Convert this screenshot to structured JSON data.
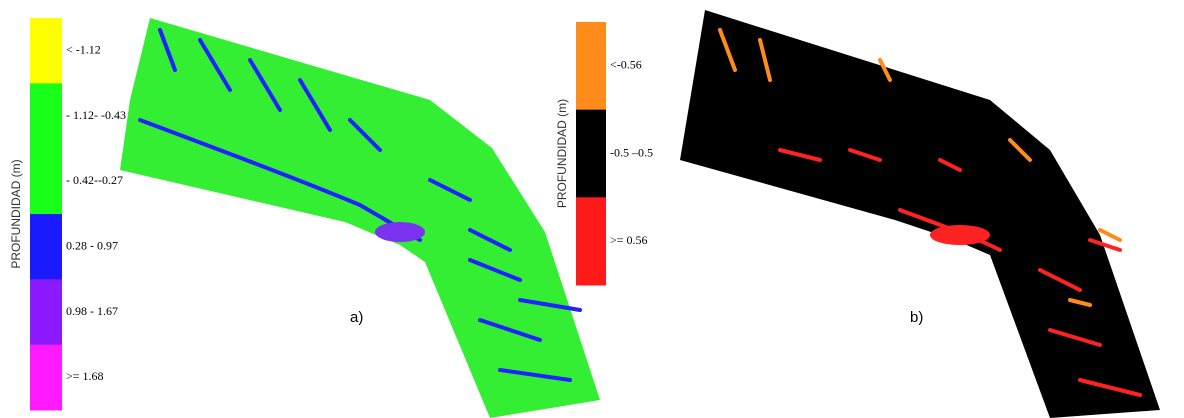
{
  "panel_a": {
    "legend_title": "PROFUNDIDAD (m)",
    "label": "a)",
    "legend": [
      {
        "label": "< -1.12",
        "color": "#ffff00"
      },
      {
        "label": "- 1.12- -0.43",
        "color": "#1aff1a"
      },
      {
        "label": "- 0.42--0.27",
        "color": "#1aff1a"
      },
      {
        "label": "0.28 - 0.97",
        "color": "#1a1aff"
      },
      {
        "label": "0.98 - 1.67",
        "color": "#8c1aff"
      },
      {
        "label": ">= 1.68",
        "color": "#ff1aff"
      }
    ]
  },
  "panel_b": {
    "legend_title": "PROFUNDIDAD (m)",
    "label": "b)",
    "legend": [
      {
        "label": "<-0.56",
        "color": "#ff8c1a"
      },
      {
        "label": "-0.5 –0.5",
        "color": "#000000"
      },
      {
        "label": ">= 0.56",
        "color": "#ff1a1a"
      }
    ]
  }
}
